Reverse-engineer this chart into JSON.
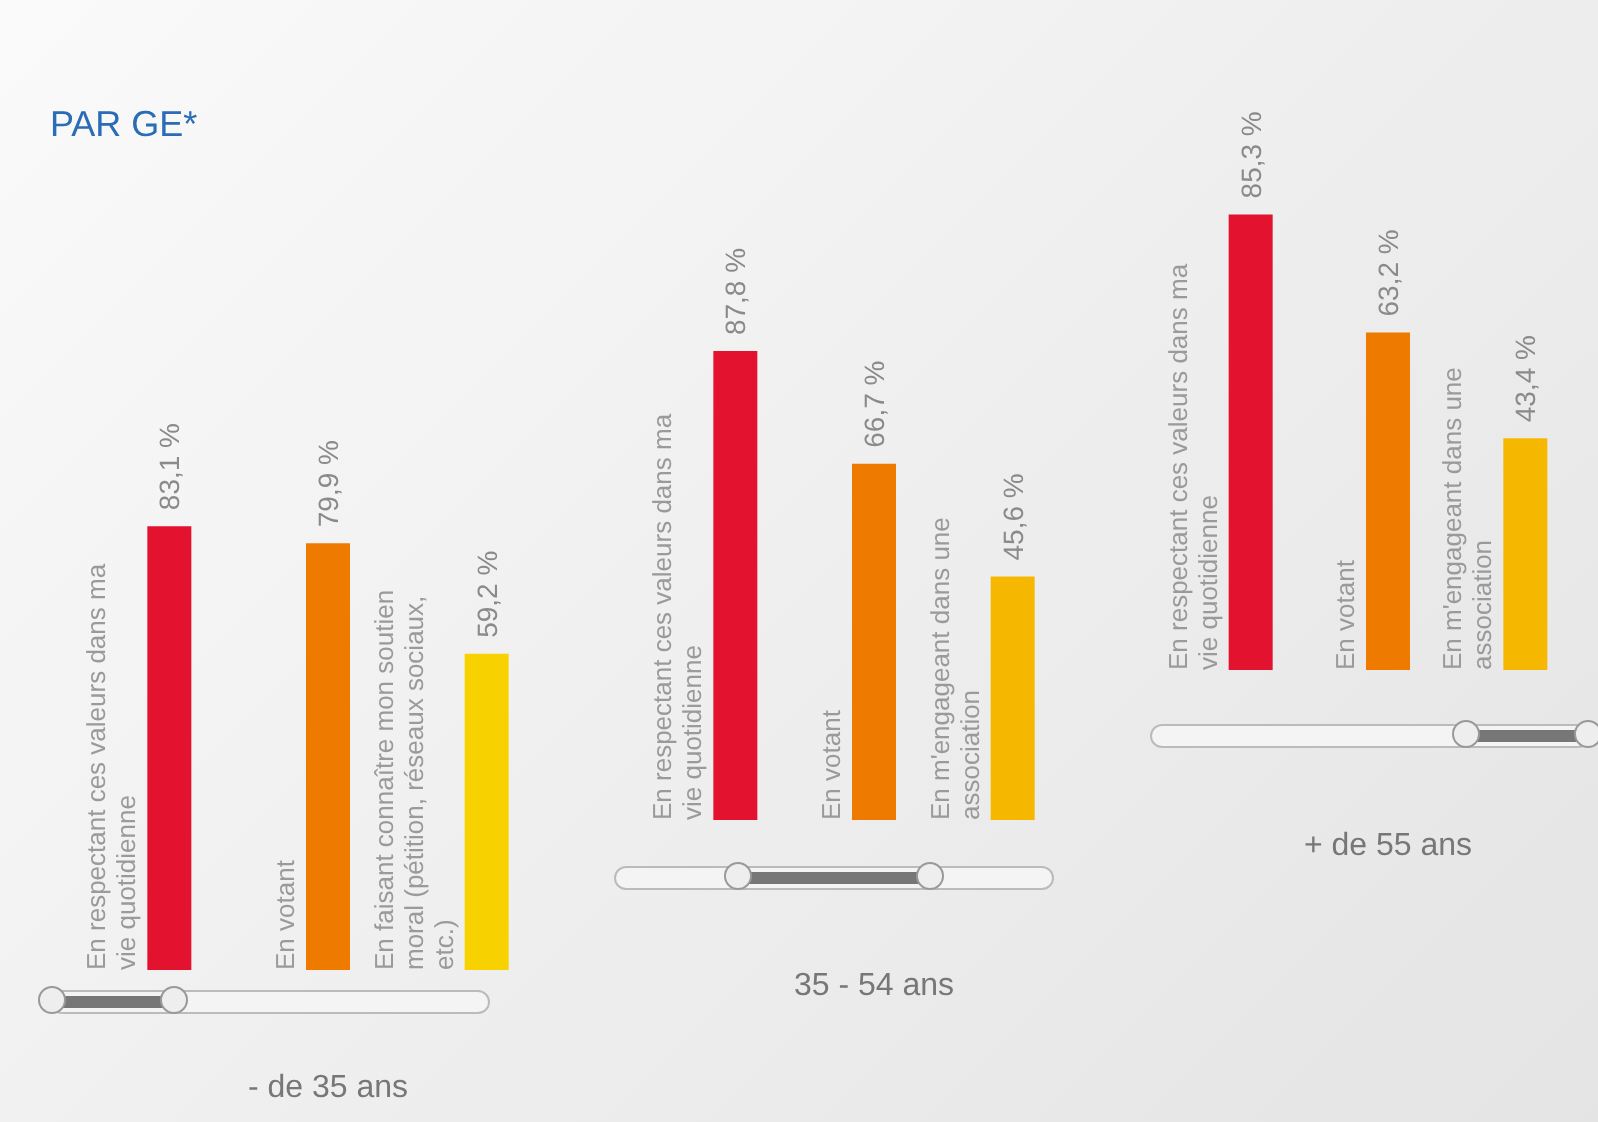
{
  "chart_data": [
    {
      "type": "bar",
      "title": "PAR GE*",
      "xlabel": "- de 35 ans",
      "categories": [
        "En respectant ces valeurs dans ma vie quotidienne",
        "En votant",
        "En faisant connaître mon soutien moral (pétition, réseaux sociaux, etc.)"
      ],
      "values": [
        83.1,
        79.9,
        59.2
      ],
      "value_labels": [
        "83,1 %",
        "79,9 %",
        "59,2 %"
      ],
      "colors": [
        "#e3122f",
        "#ee7a00",
        "#f8d200"
      ]
    },
    {
      "type": "bar",
      "xlabel": "35 - 54 ans",
      "categories": [
        "En respectant ces valeurs dans ma vie quotidienne",
        "En votant",
        "En m'engageant dans une association"
      ],
      "values": [
        87.8,
        66.7,
        45.6
      ],
      "value_labels": [
        "87,8 %",
        "66,7 %",
        "45,6 %"
      ],
      "colors": [
        "#e3122f",
        "#ee7a00",
        "#f6b700"
      ]
    },
    {
      "type": "bar",
      "xlabel": "+ de 55 ans",
      "categories": [
        "En respectant ces valeurs dans ma vie quotidienne",
        "En votant",
        "En m'engageant dans une association"
      ],
      "values": [
        85.3,
        63.2,
        43.4
      ],
      "value_labels": [
        "85,3 %",
        "63,2 %",
        "43,4 %"
      ],
      "colors": [
        "#e3122f",
        "#ee7a00",
        "#f6b700"
      ]
    }
  ]
}
